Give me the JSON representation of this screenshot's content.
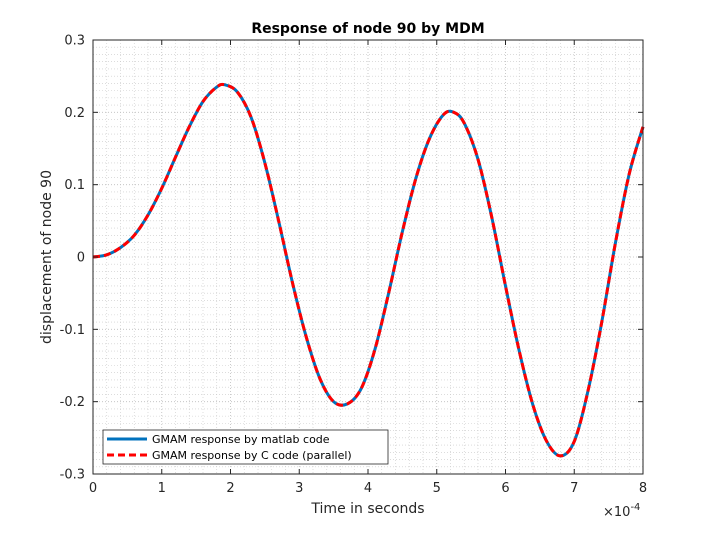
{
  "chart_data": {
    "type": "line",
    "title": "Response of node 90 by MDM",
    "xlabel": "Time in seconds",
    "ylabel": "displacement of node 90",
    "x_exponent_label": "×10",
    "x_exponent_power": "-4",
    "xlim": [
      0,
      8
    ],
    "ylim": [
      -0.3,
      0.3
    ],
    "x_ticks": [
      0,
      1,
      2,
      3,
      4,
      5,
      6,
      7,
      8
    ],
    "x_tick_labels": [
      "0",
      "1",
      "2",
      "3",
      "4",
      "5",
      "6",
      "7",
      "8"
    ],
    "y_ticks": [
      0.3,
      0.2,
      0.1,
      0,
      -0.1,
      -0.2,
      -0.3
    ],
    "y_tick_labels": [
      "0.3",
      "0.2",
      "0.1",
      "0",
      "-0.1",
      "-0.2",
      "-0.3"
    ],
    "grid": true,
    "minor_grid": true,
    "legend_position": "bottom-left",
    "series": [
      {
        "name": "GMAM response by matlab code",
        "color": "#0072BD",
        "style": "solid",
        "x": [
          0,
          0.2,
          0.4,
          0.6,
          0.8,
          1.0,
          1.2,
          1.4,
          1.6,
          1.8,
          1.92,
          2.1,
          2.3,
          2.5,
          2.7,
          2.9,
          3.1,
          3.3,
          3.5,
          3.7,
          3.9,
          4.1,
          4.3,
          4.5,
          4.7,
          4.9,
          5.1,
          5.25,
          5.4,
          5.6,
          5.8,
          6.0,
          6.2,
          6.4,
          6.6,
          6.8,
          7.0,
          7.2,
          7.4,
          7.6,
          7.8,
          8.0
        ],
        "y": [
          0,
          0.003,
          0.013,
          0.03,
          0.058,
          0.095,
          0.138,
          0.18,
          0.215,
          0.235,
          0.238,
          0.228,
          0.193,
          0.13,
          0.05,
          -0.035,
          -0.11,
          -0.168,
          -0.2,
          -0.203,
          -0.182,
          -0.128,
          -0.05,
          0.035,
          0.11,
          0.165,
          0.197,
          0.2,
          0.185,
          0.135,
          0.055,
          -0.04,
          -0.13,
          -0.205,
          -0.255,
          -0.275,
          -0.255,
          -0.185,
          -0.09,
          0.02,
          0.115,
          0.18
        ]
      },
      {
        "name": "GMAM response by C code (parallel)",
        "color": "#FF0000",
        "style": "dashed",
        "x": [
          0,
          0.2,
          0.4,
          0.6,
          0.8,
          1.0,
          1.2,
          1.4,
          1.6,
          1.8,
          1.92,
          2.1,
          2.3,
          2.5,
          2.7,
          2.9,
          3.1,
          3.3,
          3.5,
          3.7,
          3.9,
          4.1,
          4.3,
          4.5,
          4.7,
          4.9,
          5.1,
          5.25,
          5.4,
          5.6,
          5.8,
          6.0,
          6.2,
          6.4,
          6.6,
          6.8,
          7.0,
          7.2,
          7.4,
          7.6,
          7.8,
          8.0
        ],
        "y": [
          0,
          0.003,
          0.013,
          0.03,
          0.058,
          0.095,
          0.138,
          0.18,
          0.215,
          0.235,
          0.238,
          0.228,
          0.193,
          0.13,
          0.05,
          -0.035,
          -0.11,
          -0.168,
          -0.2,
          -0.203,
          -0.182,
          -0.128,
          -0.05,
          0.035,
          0.11,
          0.165,
          0.197,
          0.2,
          0.185,
          0.135,
          0.055,
          -0.04,
          -0.13,
          -0.205,
          -0.255,
          -0.275,
          -0.255,
          -0.185,
          -0.09,
          0.02,
          0.115,
          0.18
        ]
      }
    ]
  }
}
